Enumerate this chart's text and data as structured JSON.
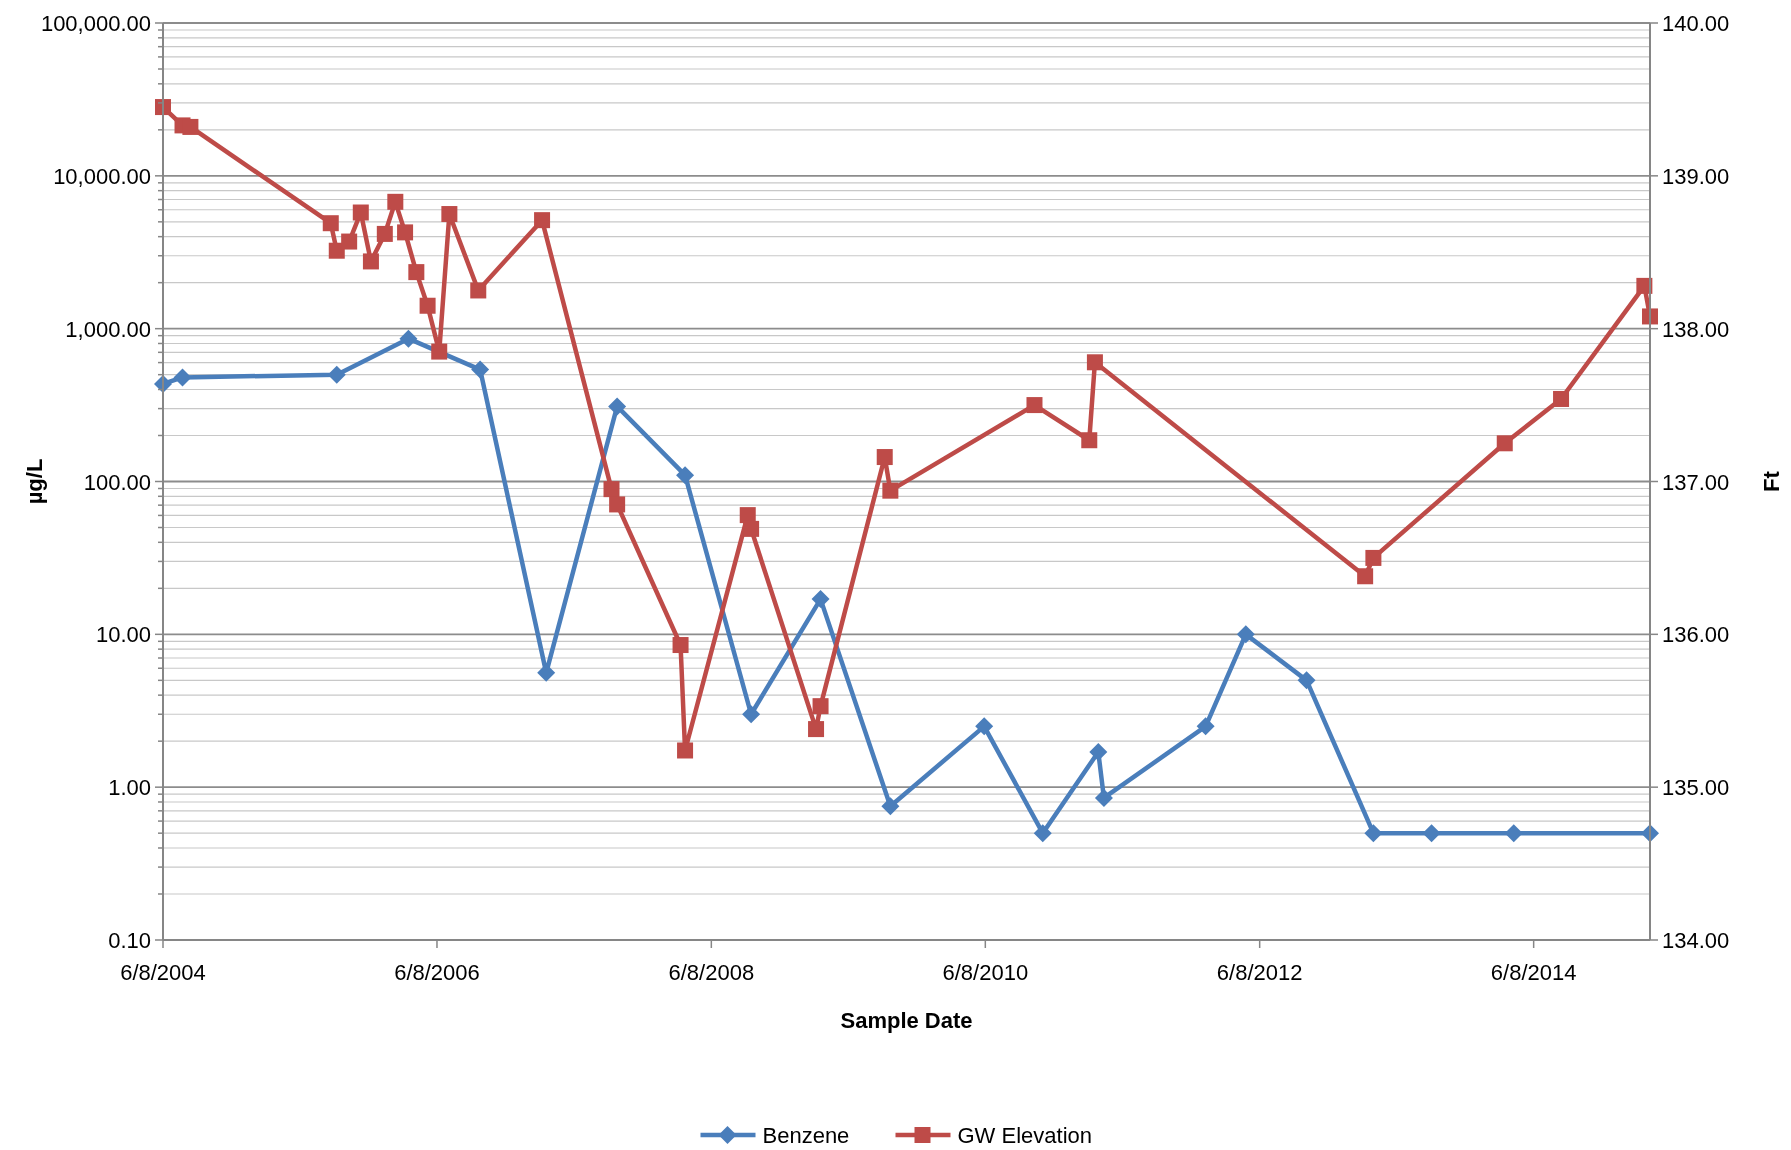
{
  "chart_data": {
    "type": "line",
    "xlabel": "Sample Date",
    "ylabel": "µg/L",
    "y2label": "Ft",
    "log": "y",
    "grid": "y",
    "legend": "bottom",
    "line_style": "solid",
    "xlim": [
      "2004-06-08",
      "2015-04-14"
    ],
    "xticks": [
      {
        "value": "2004-06-08",
        "label": "6/8/2004"
      },
      {
        "value": "2006-06-08",
        "label": "6/8/2006"
      },
      {
        "value": "2008-06-08",
        "label": "6/8/2008"
      },
      {
        "value": "2010-06-08",
        "label": "6/8/2010"
      },
      {
        "value": "2012-06-08",
        "label": "6/8/2012"
      },
      {
        "value": "2014-06-08",
        "label": "6/8/2014"
      }
    ],
    "ylim": [
      0.1,
      100000
    ],
    "yticks": [
      {
        "value": 0.1,
        "label": "0.10"
      },
      {
        "value": 0.2,
        "label": null
      },
      {
        "value": 0.3,
        "label": null
      },
      {
        "value": 0.4,
        "label": null
      },
      {
        "value": 0.5,
        "label": null
      },
      {
        "value": 0.6,
        "label": null
      },
      {
        "value": 0.7,
        "label": null
      },
      {
        "value": 0.8,
        "label": null
      },
      {
        "value": 0.9,
        "label": null
      },
      {
        "value": 1,
        "label": "1.00"
      },
      {
        "value": 2,
        "label": null
      },
      {
        "value": 3,
        "label": null
      },
      {
        "value": 4,
        "label": null
      },
      {
        "value": 5,
        "label": null
      },
      {
        "value": 6,
        "label": null
      },
      {
        "value": 7,
        "label": null
      },
      {
        "value": 8,
        "label": null
      },
      {
        "value": 9,
        "label": null
      },
      {
        "value": 10,
        "label": "10.00"
      },
      {
        "value": 20,
        "label": null
      },
      {
        "value": 30,
        "label": null
      },
      {
        "value": 40,
        "label": null
      },
      {
        "value": 50,
        "label": null
      },
      {
        "value": 60,
        "label": null
      },
      {
        "value": 70,
        "label": null
      },
      {
        "value": 80,
        "label": null
      },
      {
        "value": 90,
        "label": null
      },
      {
        "value": 100,
        "label": "100.00"
      },
      {
        "value": 200,
        "label": null
      },
      {
        "value": 300,
        "label": null
      },
      {
        "value": 400,
        "label": null
      },
      {
        "value": 500,
        "label": null
      },
      {
        "value": 600,
        "label": null
      },
      {
        "value": 700,
        "label": null
      },
      {
        "value": 800,
        "label": null
      },
      {
        "value": 900,
        "label": null
      },
      {
        "value": 1000,
        "label": "1,000.00"
      },
      {
        "value": 2000,
        "label": null
      },
      {
        "value": 3000,
        "label": null
      },
      {
        "value": 4000,
        "label": null
      },
      {
        "value": 5000,
        "label": null
      },
      {
        "value": 6000,
        "label": null
      },
      {
        "value": 7000,
        "label": null
      },
      {
        "value": 8000,
        "label": null
      },
      {
        "value": 9000,
        "label": null
      },
      {
        "value": 10000,
        "label": "10,000.00"
      },
      {
        "value": 20000,
        "label": null
      },
      {
        "value": 30000,
        "label": null
      },
      {
        "value": 40000,
        "label": null
      },
      {
        "value": 50000,
        "label": null
      },
      {
        "value": 60000,
        "label": null
      },
      {
        "value": 70000,
        "label": null
      },
      {
        "value": 80000,
        "label": null
      },
      {
        "value": 90000,
        "label": null
      },
      {
        "value": 100000,
        "label": "100,000.00"
      }
    ],
    "y2lim": [
      134,
      140
    ],
    "y2ticks": [
      {
        "value": 134,
        "label": "134.00"
      },
      {
        "value": 135,
        "label": "135.00"
      },
      {
        "value": 136,
        "label": "136.00"
      },
      {
        "value": 137,
        "label": "137.00"
      },
      {
        "value": 138,
        "label": "138.00"
      },
      {
        "value": 139,
        "label": "139.00"
      },
      {
        "value": 140,
        "label": "140.00"
      }
    ],
    "series": [
      {
        "name": "Benzene",
        "color": "#4a7ebb",
        "marker": "diamond",
        "x": [
          "2004-06-08",
          "2004-07-30",
          "2005-09-14",
          "2006-03-24",
          "2006-10-01",
          "2007-03-26",
          "2007-10-01",
          "2008-03-30",
          "2008-09-22",
          "2009-03-26",
          "2009-09-28",
          "2010-06-05",
          "2010-11-08",
          "2011-04-05",
          "2011-04-20",
          "2012-01-16",
          "2012-05-02",
          "2012-10-11",
          "2013-04-07",
          "2013-09-09",
          "2014-04-16",
          "2015-04-14"
        ],
        "values": [
          435,
          480,
          500,
          860,
          540,
          5.6,
          310,
          110,
          3,
          17,
          0.75,
          2.5,
          0.5,
          1.7,
          0.85,
          2.5,
          10,
          5,
          0.5,
          0.5,
          0.5,
          0.5
        ]
      },
      {
        "name": "GW Elevation",
        "color": "#be4b48",
        "marker": "square",
        "axis": "y2",
        "x": [
          "2004-06-08",
          "2004-07-30",
          "2004-08-20",
          "2005-08-29",
          "2005-09-14",
          "2005-10-17",
          "2005-11-17",
          "2005-12-14",
          "2006-01-20",
          "2006-02-17",
          "2006-03-15",
          "2006-04-14",
          "2006-05-14",
          "2006-06-14",
          "2006-07-11",
          "2006-09-26",
          "2007-03-15",
          "2007-09-16",
          "2007-10-01",
          "2008-03-18",
          "2008-03-30",
          "2008-09-13",
          "2008-09-22",
          "2009-03-14",
          "2009-03-26",
          "2009-09-13",
          "2009-09-28",
          "2010-10-17",
          "2011-03-12",
          "2011-03-27",
          "2013-03-16",
          "2013-04-07",
          "2014-03-23",
          "2014-08-20",
          "2015-03-30",
          "2015-04-14"
        ],
        "values": [
          139.45,
          139.33,
          139.32,
          138.69,
          138.51,
          138.57,
          138.76,
          138.44,
          138.62,
          138.83,
          138.63,
          138.37,
          138.15,
          137.85,
          138.75,
          138.25,
          138.71,
          136.95,
          136.85,
          135.93,
          135.24,
          136.78,
          136.69,
          135.38,
          135.53,
          137.16,
          136.94,
          137.5,
          137.27,
          137.78,
          136.38,
          136.5,
          137.25,
          137.54,
          138.28,
          138.08
        ]
      }
    ]
  }
}
